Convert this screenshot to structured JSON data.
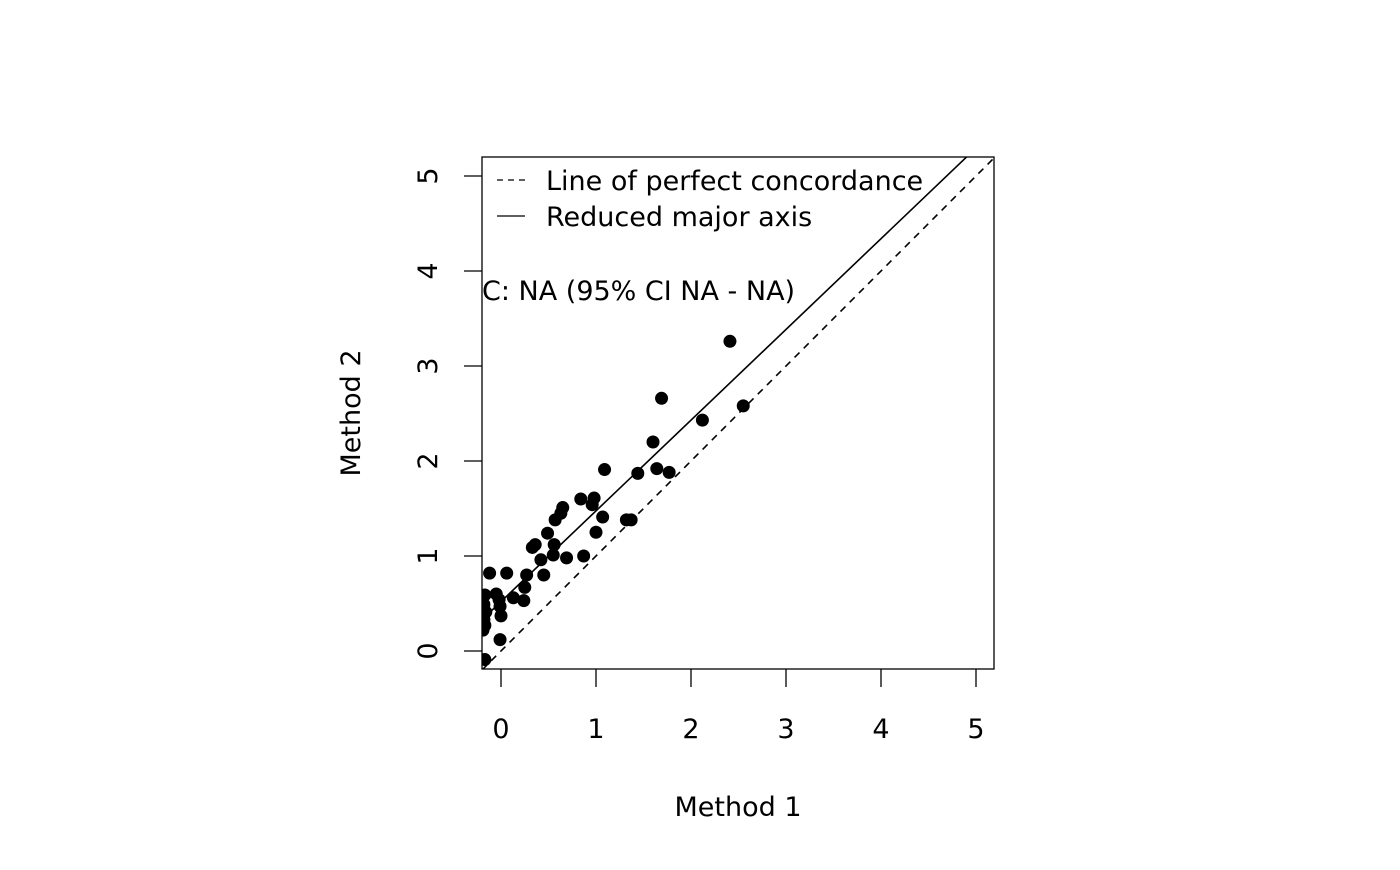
{
  "chart_data": {
    "type": "scatter",
    "title": "",
    "xlabel": "Method 1",
    "ylabel": "Method 2",
    "xlim": [
      -0.2,
      5.2
    ],
    "ylim": [
      -0.2,
      5.2
    ],
    "xticks": [
      "0",
      "1",
      "2",
      "3",
      "4",
      "5"
    ],
    "yticks": [
      "0",
      "1",
      "2",
      "3",
      "4",
      "5"
    ],
    "grid": false,
    "legend_position": "top-left",
    "legend": [
      {
        "label": "Line of perfect concordance",
        "style": "dashed"
      },
      {
        "label": "Reduced major axis",
        "style": "solid"
      }
    ],
    "annotation": "C: NA (95% CI NA - NA)",
    "lines": {
      "concordance": {
        "intercept": 0,
        "slope": 1
      },
      "reduced_major_axis": {
        "intercept": 0.52,
        "slope": 0.955
      }
    },
    "points": [
      [
        -0.17,
        -0.09
      ],
      [
        -0.01,
        0.12
      ],
      [
        0.0,
        0.37
      ],
      [
        -0.19,
        0.22
      ],
      [
        -0.17,
        0.27
      ],
      [
        -0.18,
        0.33
      ],
      [
        -0.16,
        0.41
      ],
      [
        -0.18,
        0.49
      ],
      [
        -0.17,
        0.59
      ],
      [
        -0.12,
        0.82
      ],
      [
        0.06,
        0.82
      ],
      [
        -0.05,
        0.6
      ],
      [
        -0.02,
        0.54
      ],
      [
        -0.01,
        0.47
      ],
      [
        0.13,
        0.56
      ],
      [
        0.24,
        0.53
      ],
      [
        0.25,
        0.67
      ],
      [
        0.27,
        0.8
      ],
      [
        0.45,
        0.8
      ],
      [
        0.42,
        0.96
      ],
      [
        0.55,
        1.01
      ],
      [
        0.56,
        1.12
      ],
      [
        0.49,
        1.24
      ],
      [
        0.33,
        1.09
      ],
      [
        0.36,
        1.12
      ],
      [
        0.57,
        1.38
      ],
      [
        0.63,
        1.45
      ],
      [
        0.65,
        1.51
      ],
      [
        0.69,
        0.98
      ],
      [
        0.87,
        1.0
      ],
      [
        0.84,
        1.6
      ],
      [
        0.96,
        1.54
      ],
      [
        0.98,
        1.61
      ],
      [
        1.0,
        1.25
      ],
      [
        1.07,
        1.41
      ],
      [
        1.09,
        1.91
      ],
      [
        1.32,
        1.38
      ],
      [
        1.37,
        1.38
      ],
      [
        1.44,
        1.87
      ],
      [
        1.6,
        2.2
      ],
      [
        1.64,
        1.92
      ],
      [
        1.77,
        1.88
      ],
      [
        1.69,
        2.66
      ],
      [
        2.12,
        2.43
      ],
      [
        2.41,
        3.26
      ],
      [
        2.55,
        2.58
      ]
    ]
  }
}
